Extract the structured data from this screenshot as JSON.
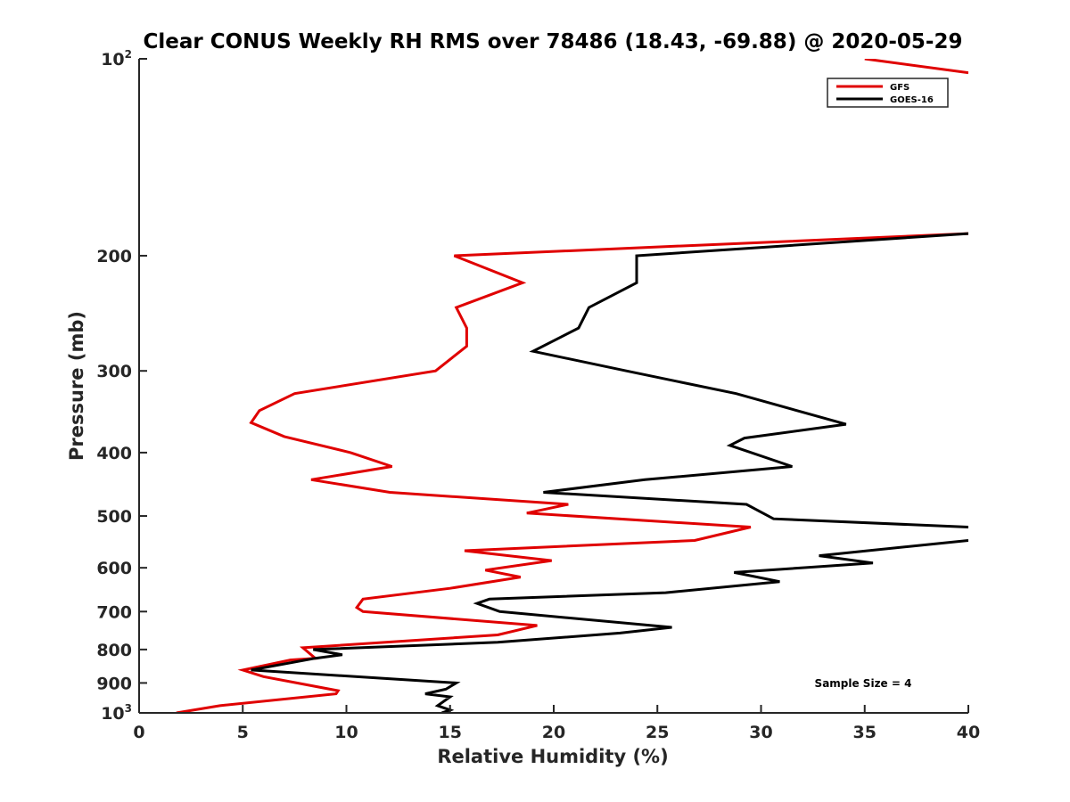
{
  "chart_data": {
    "type": "line",
    "title": "Clear CONUS Weekly RH RMS over 78486 (18.43, -69.88) @ 2020-05-29",
    "xlabel": "Relative Humidity (%)",
    "ylabel": "Pressure (mb)",
    "xlim": [
      0,
      40
    ],
    "ylim": [
      100,
      1000
    ],
    "yscale": "log",
    "y_reversed": true,
    "x_ticks": [
      "0",
      "5",
      "10",
      "15",
      "20",
      "25",
      "30",
      "35",
      "40"
    ],
    "y_ticks": [
      {
        "value": 100,
        "label": "10",
        "sup": "2"
      },
      {
        "value": 200,
        "label": "200",
        "sup": ""
      },
      {
        "value": 300,
        "label": "300",
        "sup": ""
      },
      {
        "value": 400,
        "label": "400",
        "sup": ""
      },
      {
        "value": 500,
        "label": "500",
        "sup": ""
      },
      {
        "value": 600,
        "label": "600",
        "sup": ""
      },
      {
        "value": 700,
        "label": "700",
        "sup": ""
      },
      {
        "value": 800,
        "label": "800",
        "sup": ""
      },
      {
        "value": 900,
        "label": "900",
        "sup": ""
      },
      {
        "value": 1000,
        "label": "10",
        "sup": "3"
      }
    ],
    "legend_position": "top-right",
    "annotation": "Sample Size = 4",
    "series": [
      {
        "name": "GFS",
        "color": "#e00000",
        "points": [
          [
            35,
            100
          ],
          [
            40,
            105
          ],
          null,
          [
            40,
            185
          ],
          [
            15.2,
            200
          ],
          [
            18.5,
            220
          ],
          [
            15.3,
            240
          ],
          [
            15.8,
            258
          ],
          [
            15.8,
            275
          ],
          [
            14.3,
            300
          ],
          [
            7.5,
            325
          ],
          [
            5.8,
            345
          ],
          [
            5.4,
            360
          ],
          [
            7.0,
            378
          ],
          [
            10.2,
            400
          ],
          [
            12.2,
            420
          ],
          [
            8.3,
            440
          ],
          [
            12.1,
            460
          ],
          [
            20.7,
            480
          ],
          [
            18.7,
            495
          ],
          [
            29.5,
            520
          ],
          [
            26.8,
            545
          ],
          [
            15.7,
            565
          ],
          [
            19.9,
            585
          ],
          [
            16.7,
            605
          ],
          [
            18.4,
            620
          ],
          [
            15.0,
            645
          ],
          [
            10.8,
            670
          ],
          [
            10.5,
            690
          ],
          [
            10.8,
            700
          ],
          [
            19.2,
            735
          ],
          [
            17.3,
            760
          ],
          [
            7.9,
            795
          ],
          [
            8.5,
            825
          ],
          [
            7.3,
            830
          ],
          [
            5.0,
            860
          ],
          [
            6.0,
            880
          ],
          [
            9.6,
            925
          ],
          [
            9.5,
            935
          ],
          [
            3.9,
            975
          ],
          [
            1.8,
            1000
          ]
        ]
      },
      {
        "name": "GOES-16",
        "color": "#000000",
        "points": [
          [
            40,
            185
          ],
          [
            24.0,
            200
          ],
          [
            24.0,
            220
          ],
          [
            21.7,
            240
          ],
          [
            21.2,
            258
          ],
          [
            19.0,
            280
          ],
          [
            23.5,
            300
          ],
          [
            28.8,
            325
          ],
          [
            34.1,
            362
          ],
          [
            29.2,
            380
          ],
          [
            28.5,
            390
          ],
          [
            31.5,
            420
          ],
          [
            24.4,
            440
          ],
          [
            19.5,
            460
          ],
          [
            29.3,
            480
          ],
          [
            30.6,
            505
          ],
          [
            40,
            520
          ],
          null,
          [
            40,
            545
          ],
          [
            32.8,
            575
          ],
          [
            35.4,
            590
          ],
          [
            28.7,
            610
          ],
          [
            30.9,
            630
          ],
          [
            25.4,
            655
          ],
          [
            16.9,
            670
          ],
          [
            16.3,
            680
          ],
          [
            17.4,
            700
          ],
          [
            25.7,
            740
          ],
          [
            23.2,
            755
          ],
          [
            17.3,
            780
          ],
          [
            8.4,
            800
          ],
          [
            9.8,
            815
          ],
          [
            8.5,
            825
          ],
          [
            5.4,
            860
          ],
          [
            15.3,
            900
          ],
          [
            14.8,
            920
          ],
          [
            13.8,
            935
          ],
          [
            15.0,
            945
          ],
          [
            14.4,
            975
          ],
          [
            15.0,
            990
          ],
          [
            14.6,
            1000
          ]
        ]
      }
    ]
  }
}
